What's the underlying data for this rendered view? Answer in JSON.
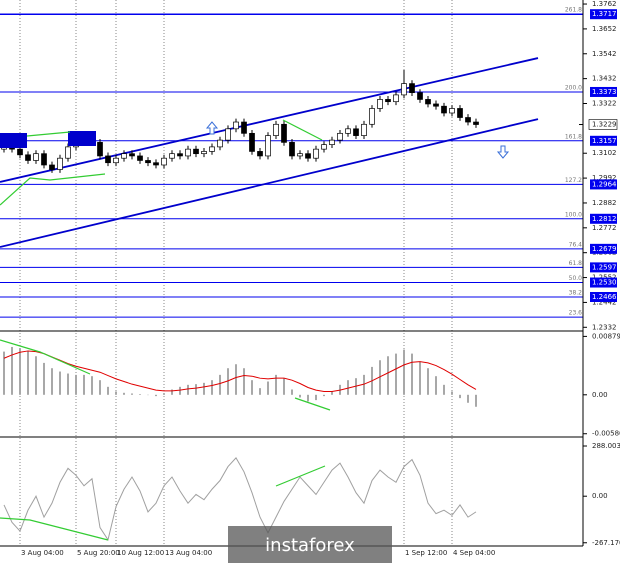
{
  "chart_data": [
    {
      "type": "candlestick",
      "categories": [
        null,
        null,
        "3 Aug 04:00",
        null,
        null,
        null,
        null,
        null,
        null,
        "5 Aug 20:00",
        null,
        null,
        null,
        null,
        "10 Aug 12:00",
        null,
        null,
        null,
        null,
        null,
        "13 Aug 04:00",
        null,
        null,
        null,
        null,
        null,
        null,
        null,
        null,
        null,
        null,
        null,
        null,
        null,
        null,
        null,
        null,
        null,
        null,
        null,
        null,
        null,
        null,
        null,
        null,
        null,
        null,
        null,
        null,
        null,
        "1 Sep 12:00",
        null,
        null,
        null,
        null,
        null,
        "4 Sep 04:00",
        null,
        null,
        null
      ],
      "open": [
        1.312,
        1.314,
        1.312,
        1.3095,
        1.307,
        1.31,
        1.305,
        1.303,
        1.308,
        1.313,
        1.316,
        1.318,
        1.315,
        1.309,
        1.306,
        1.308,
        1.31,
        1.309,
        1.307,
        1.306,
        1.305,
        1.308,
        1.31,
        1.309,
        1.312,
        1.31,
        1.311,
        1.313,
        1.316,
        1.321,
        1.324,
        1.319,
        1.311,
        1.309,
        1.318,
        1.323,
        1.315,
        1.309,
        1.31,
        1.308,
        1.312,
        1.314,
        1.316,
        1.319,
        1.321,
        1.318,
        1.323,
        1.33,
        1.334,
        1.333,
        1.336,
        1.341,
        1.337,
        1.334,
        1.332,
        1.331,
        1.328,
        1.33,
        1.326,
        1.324
      ],
      "high": [
        1.3155,
        1.3155,
        1.3135,
        1.311,
        1.3115,
        1.3115,
        1.3065,
        1.3095,
        1.3145,
        1.3175,
        1.3195,
        1.3195,
        1.3165,
        1.3105,
        1.3095,
        1.3115,
        1.3115,
        1.3105,
        1.3085,
        1.3075,
        1.3095,
        1.3115,
        1.3115,
        1.3135,
        1.3135,
        1.3125,
        1.3145,
        1.3175,
        1.3225,
        1.3255,
        1.3255,
        1.3205,
        1.3125,
        1.3195,
        1.3245,
        1.3245,
        1.3165,
        1.3115,
        1.3115,
        1.3135,
        1.3155,
        1.3175,
        1.3205,
        1.3225,
        1.3225,
        1.3245,
        1.3315,
        1.3355,
        1.3355,
        1.3375,
        1.347,
        1.3425,
        1.3385,
        1.3355,
        1.3335,
        1.3325,
        1.3315,
        1.3315,
        1.3275,
        1.3255
      ],
      "low": [
        1.3105,
        1.3105,
        1.308,
        1.3055,
        1.3055,
        1.3035,
        1.3015,
        1.3015,
        1.3065,
        1.3115,
        1.3145,
        1.3135,
        1.3075,
        1.3045,
        1.3045,
        1.3065,
        1.3075,
        1.3055,
        1.3045,
        1.3035,
        1.3035,
        1.3065,
        1.3075,
        1.3075,
        1.3085,
        1.3085,
        1.3095,
        1.3115,
        1.3145,
        1.3195,
        1.3175,
        1.3095,
        1.3075,
        1.3075,
        1.3165,
        1.3135,
        1.3075,
        1.3075,
        1.3065,
        1.3065,
        1.3105,
        1.3125,
        1.3145,
        1.3175,
        1.3165,
        1.3165,
        1.3215,
        1.3285,
        1.3315,
        1.3315,
        1.3345,
        1.3355,
        1.3325,
        1.3305,
        1.3295,
        1.3265,
        1.3265,
        1.3245,
        1.3225,
        1.3214
      ],
      "close": [
        1.314,
        1.312,
        1.3095,
        1.307,
        1.31,
        1.305,
        1.303,
        1.308,
        1.313,
        1.316,
        1.318,
        1.315,
        1.309,
        1.306,
        1.308,
        1.31,
        1.309,
        1.307,
        1.306,
        1.305,
        1.308,
        1.31,
        1.309,
        1.312,
        1.31,
        1.311,
        1.313,
        1.316,
        1.321,
        1.324,
        1.319,
        1.311,
        1.309,
        1.318,
        1.323,
        1.315,
        1.309,
        1.31,
        1.308,
        1.312,
        1.314,
        1.316,
        1.319,
        1.321,
        1.318,
        1.323,
        1.33,
        1.334,
        1.333,
        1.336,
        1.341,
        1.337,
        1.334,
        1.332,
        1.331,
        1.328,
        1.33,
        1.326,
        1.324,
        1.3229
      ],
      "last": 1.3229,
      "ylim": [
        1.232,
        1.3771
      ],
      "yticks": [
        1.3762,
        1.3652,
        1.3542,
        1.3432,
        1.3322,
        1.3102,
        1.2992,
        1.2882,
        1.2772,
        1.2662,
        1.2552,
        1.2442,
        1.2332
      ],
      "level_color": "#0000ee",
      "levels": [
        {
          "label": "261.8",
          "value": 1.3717
        },
        {
          "label": "200.0",
          "value": 1.3373
        },
        {
          "label": "161.8",
          "value": 1.3157
        },
        {
          "label": "127.2",
          "value": 1.2964
        },
        {
          "label": "100.0",
          "value": 1.2812
        },
        {
          "label": "76.4",
          "value": 1.2679
        },
        {
          "label": "61.8",
          "value": 1.2597
        },
        {
          "label": "50.0",
          "value": 1.253,
          "value_label": "1.2530"
        },
        {
          "label": "38.2",
          "value": 1.2466
        },
        {
          "label": "23.6",
          "value": 1.2377,
          "price_box": false
        }
      ],
      "trend_color": "#0000cc",
      "trendlines": [
        {
          "x": [
            -0.5,
            66.75
          ],
          "values": [
            1.2975,
            1.3523
          ]
        },
        {
          "x": [
            -0.5,
            66.75
          ],
          "values": [
            1.2687,
            1.3253
          ]
        }
      ]
    },
    {
      "type": "bar",
      "color": "#a8a8a8",
      "values": [
        0.0065,
        0.0072,
        0.007,
        0.0066,
        0.0058,
        0.0048,
        0.004,
        0.0035,
        0.0032,
        0.003,
        0.003,
        0.0028,
        0.0022,
        0.0012,
        0.0005,
        0.0003,
        0.0002,
        0.0001,
        0.0,
        -0.0002,
        0.0002,
        0.0008,
        0.0012,
        0.0015,
        0.0016,
        0.0018,
        0.0022,
        0.003,
        0.004,
        0.0046,
        0.004,
        0.0022,
        0.001,
        0.002,
        0.003,
        0.0025,
        0.0008,
        -0.0004,
        -0.001,
        -0.0008,
        -0.0002,
        0.0005,
        0.0015,
        0.0022,
        0.0025,
        0.003,
        0.0042,
        0.0052,
        0.0058,
        0.0062,
        0.0068,
        0.0062,
        0.005,
        0.004,
        0.0028,
        0.0015,
        0.0005,
        -0.0005,
        -0.0012,
        -0.0018
      ],
      "line": {
        "color": "#e00000",
        "values": [
          0.0055,
          0.006,
          0.0064,
          0.0066,
          0.0065,
          0.0062,
          0.0057,
          0.0052,
          0.0047,
          0.0043,
          0.004,
          0.0037,
          0.0034,
          0.0029,
          0.0024,
          0.002,
          0.0016,
          0.0013,
          0.001,
          0.0007,
          0.0006,
          0.0006,
          0.0007,
          0.0009,
          0.001,
          0.0012,
          0.0014,
          0.0017,
          0.0021,
          0.0026,
          0.0029,
          0.0028,
          0.0025,
          0.0024,
          0.0025,
          0.0025,
          0.0022,
          0.0017,
          0.0011,
          0.0007,
          0.0005,
          0.0005,
          0.0007,
          0.001,
          0.0013,
          0.0016,
          0.0021,
          0.0027,
          0.0033,
          0.0039,
          0.0045,
          0.0049,
          0.005,
          0.0048,
          0.0044,
          0.0038,
          0.0031,
          0.0023,
          0.0015,
          0.0008
        ]
      },
      "ylim": [
        -0.0062,
        0.0093
      ],
      "yticks": [
        0.00879,
        {
          "value": 0,
          "label": "0.00"
        },
        -0.00586
      ]
    },
    {
      "type": "line",
      "color": "#a0a0a0",
      "values": [
        -50,
        -150,
        -200,
        -80,
        0,
        -120,
        -40,
        80,
        160,
        120,
        60,
        100,
        -180,
        -250,
        -60,
        40,
        110,
        30,
        -90,
        -40,
        60,
        110,
        30,
        -40,
        10,
        -20,
        40,
        90,
        170,
        220,
        140,
        20,
        -120,
        -210,
        -120,
        -30,
        40,
        110,
        60,
        10,
        80,
        150,
        190,
        110,
        20,
        -40,
        90,
        150,
        110,
        80,
        170,
        210,
        120,
        -40,
        -100,
        -80,
        -110,
        -50,
        -120,
        -90
      ],
      "ylim": [
        -280,
        334
      ],
      "yticks": [
        288.0038,
        {
          "value": 0,
          "label": "0.00"
        },
        {
          "value": -267.17,
          "label": "-267.170"
        }
      ]
    }
  ],
  "watermark": "instaforex"
}
